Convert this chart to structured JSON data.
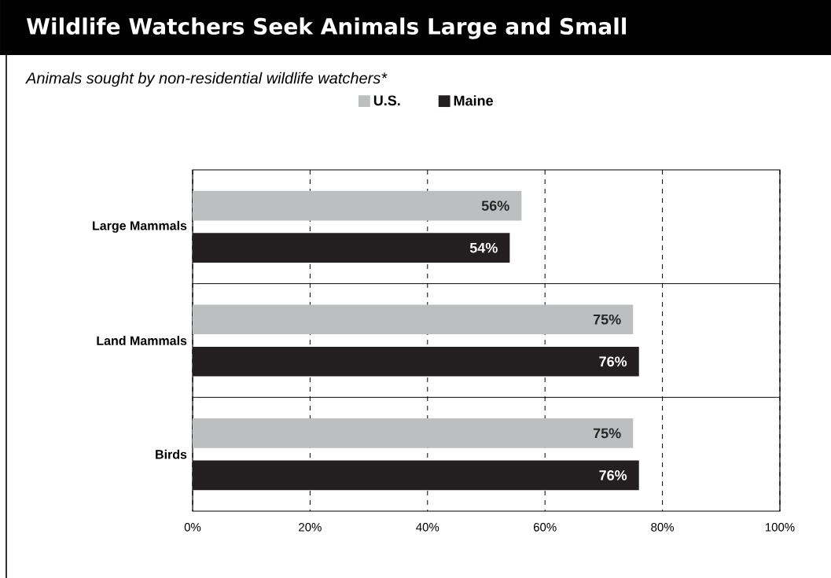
{
  "chart_data": {
    "type": "bar",
    "orientation": "horizontal",
    "title": "Wildlife Watchers Seek Animals Large and Small",
    "subtitle": "Animals sought by non-residential wildlife watchers*",
    "categories": [
      "Large Mammals",
      "Land Mammals",
      "Birds"
    ],
    "series": [
      {
        "name": "U.S.",
        "color": "#bcbec0",
        "values": [
          56,
          75,
          75
        ],
        "value_labels": [
          "56%",
          "75%",
          "75%"
        ]
      },
      {
        "name": "Maine",
        "color": "#231f20",
        "values": [
          54,
          76,
          76
        ],
        "value_labels": [
          "54%",
          "76%",
          "76%"
        ]
      }
    ],
    "xlim": [
      0,
      100
    ],
    "xticks": [
      {
        "value": 0,
        "label": "0%"
      },
      {
        "value": 20,
        "label": "20%"
      },
      {
        "value": 40,
        "label": "40%"
      },
      {
        "value": 60,
        "label": "60%"
      },
      {
        "value": 80,
        "label": "80%"
      },
      {
        "value": 100,
        "label": "100%"
      }
    ],
    "grid": "x",
    "legend": "top"
  }
}
